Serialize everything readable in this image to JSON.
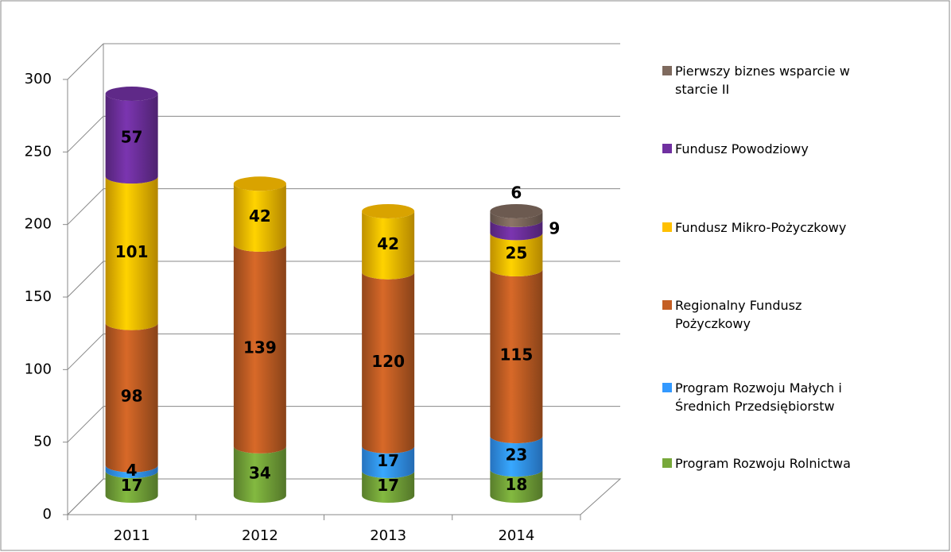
{
  "chart_data": {
    "type": "bar3d_stacked",
    "categories": [
      "2011",
      "2012",
      "2013",
      "2014"
    ],
    "series": [
      {
        "name": "Program Rozwoju Rolnictwa",
        "color": "#77a83a",
        "values": [
          17,
          34,
          17,
          18
        ]
      },
      {
        "name": "Program Rozwoju Małych i Średnich Przedsiębiorstw",
        "color": "#3399ff",
        "values": [
          4,
          null,
          17,
          23
        ]
      },
      {
        "name": "Regionalny Fundusz Pożyczkowy",
        "color": "#c45f24",
        "values": [
          98,
          139,
          120,
          115
        ]
      },
      {
        "name": "Fundusz Mikro-Pożyczkowy",
        "color": "#ffc000",
        "values": [
          101,
          42,
          42,
          25
        ]
      },
      {
        "name": "Fundusz Powodziowy",
        "color": "#7030a0",
        "values": [
          57,
          null,
          null,
          9
        ]
      },
      {
        "name": "Pierwszy biznes wsparcie w starcie II",
        "color": "#7f6a5e",
        "values": [
          null,
          null,
          null,
          6
        ]
      }
    ],
    "ylim": [
      0,
      300
    ],
    "yticks": [
      0,
      50,
      100,
      150,
      200,
      250,
      300
    ],
    "grid": true,
    "legend": "right"
  }
}
